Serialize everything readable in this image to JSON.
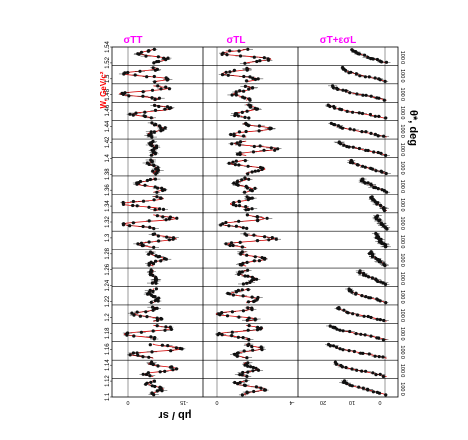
{
  "chart_data": {
    "type": "scatter",
    "layout": "three stacked panels (rotated figure), 19 W-bins each",
    "panels": [
      {
        "title": "σTT",
        "ylim": [
          -30,
          5
        ],
        "ticks": [
          "0",
          "-15"
        ],
        "colors": {
          "fit": "#d40000",
          "points": "#111111"
        }
      },
      {
        "title": "σTL",
        "ylim": [
          -5,
          6
        ],
        "ticks": [
          "0",
          "-4"
        ],
        "colors": {
          "fit": "#d40000",
          "points": "#111111"
        }
      },
      {
        "title": "σT+εσL",
        "ylim": [
          0,
          20
        ],
        "ticks": [
          "20",
          "10",
          "0"
        ],
        "colors": {
          "fit": "#d40000",
          "points": "#111111"
        }
      }
    ],
    "w_axis": {
      "label": "W, GeV/c²",
      "ticks": [
        "1.1",
        "1.12",
        "1.14",
        "1.16",
        "1.18",
        "1.2",
        "1.22",
        "1.24",
        "1.26",
        "1.28",
        "1.3",
        "1.32",
        "1.34",
        "1.36",
        "1.38",
        "1.4",
        "1.42",
        "1.44",
        "1.46",
        "1.48",
        "1.5",
        "1.52",
        "1.54"
      ]
    },
    "theta_axis": {
      "label": "θ*, deg",
      "ticks": [
        "0",
        "100"
      ],
      "range": [
        0,
        180
      ]
    },
    "y_axis_label": "μb / sr",
    "bins": 19
  }
}
